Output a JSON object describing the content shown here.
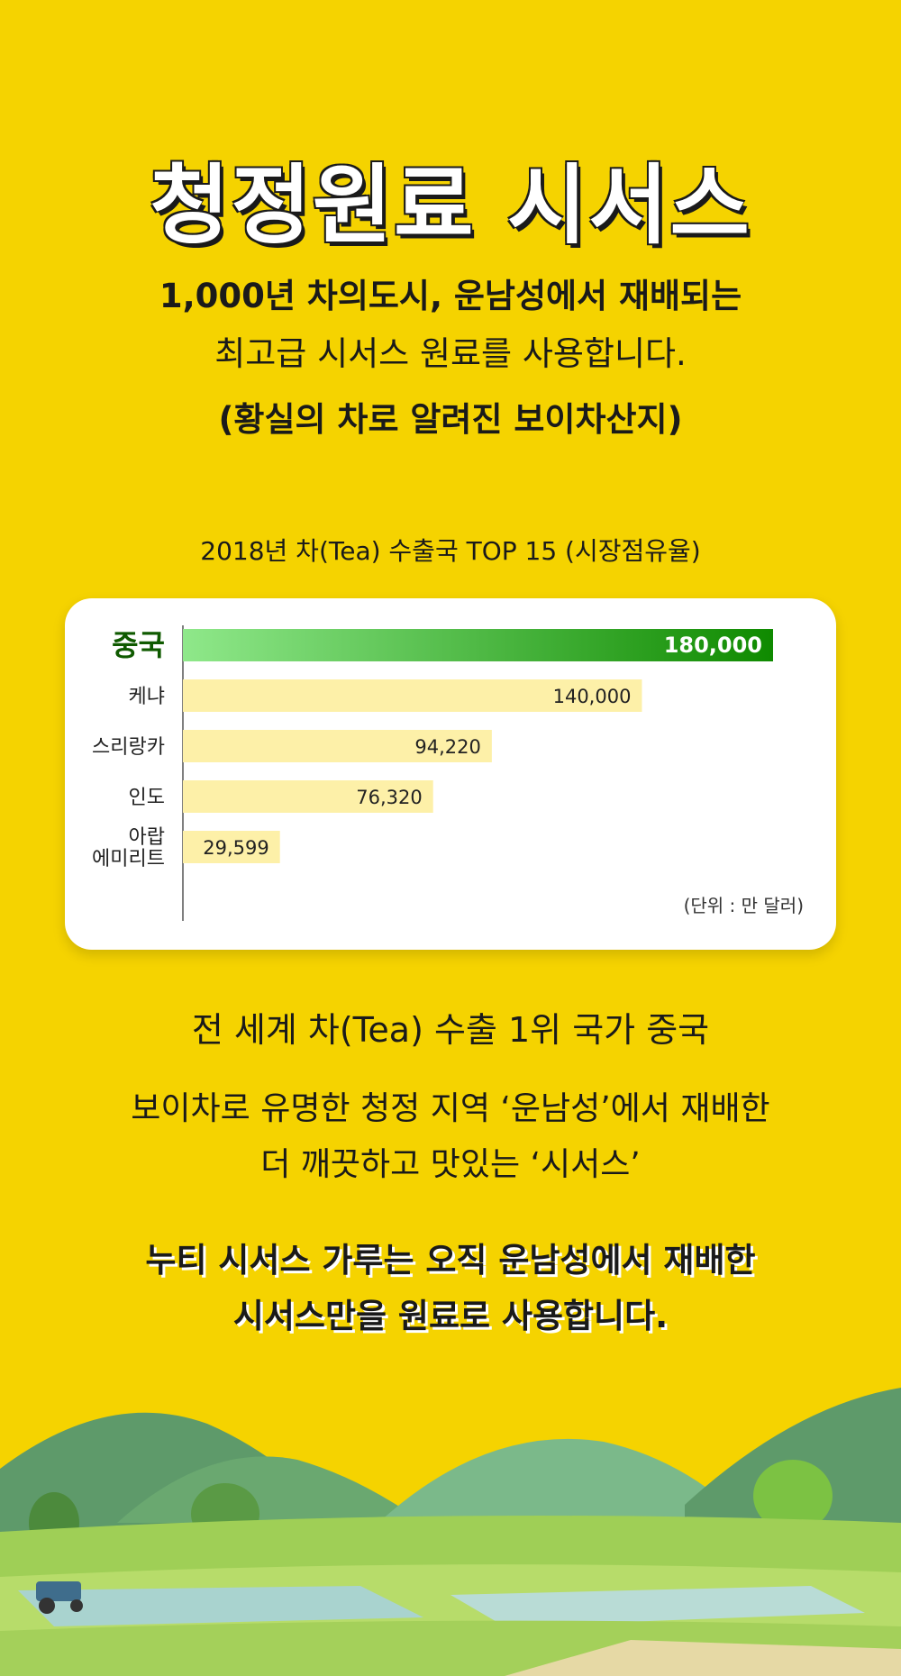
{
  "header": {
    "title": "청정원료 시서스",
    "subtitle_line1": "1,000년 차의도시, 운남성에서 재배되는",
    "subtitle_line2": "최고급 시서스 원료를 사용합니다.",
    "subtitle_line3": "(황실의 차로 알려진 보이차산지)"
  },
  "chart_data": {
    "type": "bar",
    "orientation": "horizontal",
    "title": "2018년 차(Tea) 수출국 TOP 15 (시장점유율)",
    "categories": [
      "중국",
      "케냐",
      "스리랑카",
      "인도",
      "아랍\n에미리트"
    ],
    "values": [
      180000,
      140000,
      94220,
      76320,
      29599
    ],
    "value_labels": [
      "180,000",
      "140,000",
      "94,220",
      "76,320",
      "29,599"
    ],
    "unit_note": "(단위 : 만 달러)",
    "highlight_index": 0,
    "colors": {
      "highlight_start": "#8fe88a",
      "highlight_end": "#0f8a00",
      "bar": "#fdf0a8",
      "highlight_label": "#0f5a00"
    },
    "xlim": [
      0,
      180000
    ],
    "grid": false,
    "legend": "none"
  },
  "body": {
    "line1": "전 세계 차(Tea) 수출 1위 국가 중국",
    "line2": "보이차로 유명한 청정 지역 ‘운남성’에서 재배한",
    "line3": "더 깨끗하고 맛있는 ‘시서스’",
    "line4": "누티 시서스 가루는 오직 운남성에서 재배한",
    "line5": "시서스만을 원료로 사용합니다."
  },
  "colors": {
    "background": "#f5d300",
    "card": "#ffffff",
    "text": "#1a1a1a"
  },
  "illustration": {
    "name": "tea-field-landscape"
  }
}
